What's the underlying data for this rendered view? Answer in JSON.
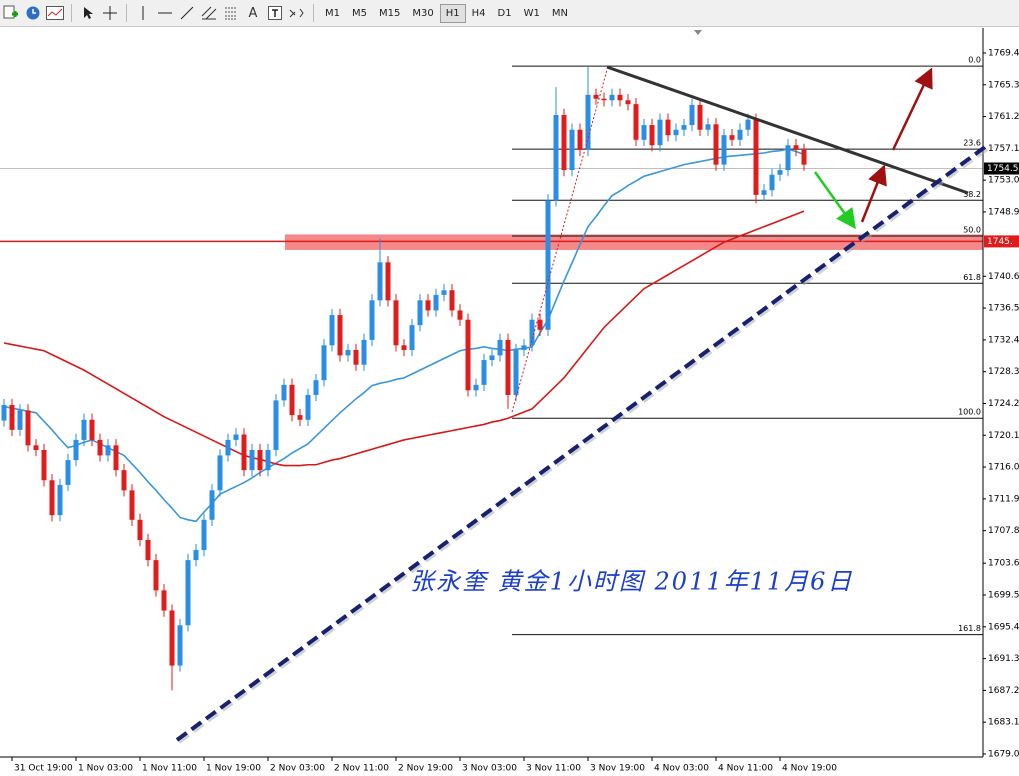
{
  "toolbar": {
    "timeframes": [
      "M1",
      "M5",
      "M15",
      "M30",
      "H1",
      "H4",
      "D1",
      "W1",
      "MN"
    ],
    "active_timeframe": "H1",
    "text_tool": "A"
  },
  "chart_data": {
    "type": "candlestick",
    "annotation": "张永奎  黄金1小时图  2011年11月6日",
    "up_color": "#2a8ee6",
    "down_color": "#e01b1b",
    "categories": [
      null,
      "31 Oct 19:00",
      null,
      null,
      null,
      null,
      null,
      null,
      null,
      "1 Nov 03:00",
      null,
      null,
      null,
      null,
      null,
      null,
      null,
      "1 Nov 11:00",
      null,
      null,
      null,
      null,
      null,
      null,
      null,
      "1 Nov 19:00",
      null,
      null,
      null,
      null,
      null,
      null,
      null,
      "2 Nov 03:00",
      null,
      null,
      null,
      null,
      null,
      null,
      null,
      "2 Nov 11:00",
      null,
      null,
      null,
      null,
      null,
      null,
      null,
      "2 Nov 19:00",
      null,
      null,
      null,
      null,
      null,
      null,
      null,
      "3 Nov 03:00",
      null,
      null,
      null,
      null,
      null,
      null,
      null,
      "3 Nov 11:00",
      null,
      null,
      null,
      null,
      null,
      null,
      null,
      "3 Nov 19:00",
      null,
      null,
      null,
      null,
      null,
      null,
      null,
      "4 Nov 03:00",
      null,
      null,
      null,
      null,
      null,
      null,
      null,
      "4 Nov 11:00",
      null,
      null,
      null,
      null,
      null,
      null,
      null,
      "4 Nov 19:00",
      null,
      null,
      null
    ],
    "open": [
      1722.0,
      1724.0,
      1720.8,
      1723.3,
      1718.8,
      1718.2,
      1714.3,
      1709.8,
      1713.7,
      1716.9,
      1719.5,
      1722.1,
      1719.5,
      1717.5,
      1718.8,
      1715.6,
      1713.0,
      1709.2,
      1706.6,
      1704.0,
      1700.1,
      1697.5,
      1690.4,
      1695.6,
      1704.0,
      1705.3,
      1709.2,
      1713.0,
      1717.5,
      1719.5,
      1720.2,
      1715.6,
      1718.2,
      1715.6,
      1718.2,
      1724.6,
      1726.6,
      1722.7,
      1722.1,
      1725.3,
      1727.2,
      1731.7,
      1735.6,
      1730.4,
      1731.1,
      1729.2,
      1732.4,
      1737.5,
      1742.4,
      1737.5,
      1731.7,
      1731.1,
      1734.3,
      1737.5,
      1736.2,
      1738.2,
      1738.8,
      1736.2,
      1735.0,
      1725.9,
      1726.6,
      1729.8,
      1730.4,
      1732.4,
      1725.3,
      1731.1,
      1731.7,
      1735.0,
      1733.7,
      1750.4,
      1761.4,
      1754.3,
      1759.5,
      1756.9,
      1764.0,
      1763.5,
      1763.3,
      1764.0,
      1763.3,
      1762.8,
      1758.2,
      1760.1,
      1757.5,
      1760.8,
      1758.8,
      1759.5,
      1760.1,
      1762.7,
      1759.5,
      1760.2,
      1755.0,
      1758.8,
      1758.2,
      1759.5,
      1760.8,
      1751.1,
      1751.7,
      1753.7,
      1754.3,
      1757.5,
      1756.9
    ],
    "high": [
      1724.8,
      1724.8,
      1724.1,
      1724.1,
      1719.6,
      1719.0,
      1715.1,
      1714.5,
      1717.7,
      1720.3,
      1722.9,
      1722.9,
      1720.3,
      1719.6,
      1719.6,
      1716.4,
      1713.8,
      1710.0,
      1707.4,
      1704.8,
      1700.9,
      1698.3,
      1696.4,
      1704.8,
      1706.1,
      1710.0,
      1713.8,
      1718.3,
      1720.3,
      1721.0,
      1721.0,
      1719.0,
      1719.0,
      1719.0,
      1725.4,
      1727.4,
      1727.4,
      1723.5,
      1726.1,
      1728.0,
      1732.5,
      1736.4,
      1736.4,
      1731.9,
      1731.9,
      1733.2,
      1738.3,
      1745.5,
      1743.2,
      1738.3,
      1732.5,
      1735.1,
      1738.3,
      1738.3,
      1739.0,
      1739.6,
      1739.6,
      1737.0,
      1735.8,
      1727.4,
      1730.6,
      1731.2,
      1733.2,
      1733.2,
      1731.9,
      1732.5,
      1735.8,
      1735.8,
      1751.2,
      1765.0,
      1762.2,
      1760.3,
      1760.3,
      1767.6,
      1764.8,
      1764.3,
      1764.8,
      1764.8,
      1764.1,
      1763.6,
      1760.9,
      1760.9,
      1761.6,
      1761.6,
      1760.3,
      1760.9,
      1763.5,
      1763.5,
      1761.0,
      1761.0,
      1759.6,
      1759.6,
      1760.3,
      1761.6,
      1761.6,
      1752.5,
      1754.5,
      1755.1,
      1758.3,
      1758.3,
      1757.7
    ],
    "low": [
      1721.2,
      1720.0,
      1720.0,
      1718.0,
      1717.4,
      1713.5,
      1709.0,
      1709.0,
      1712.9,
      1716.1,
      1718.7,
      1718.7,
      1716.7,
      1716.7,
      1714.8,
      1712.2,
      1708.4,
      1705.8,
      1703.2,
      1699.3,
      1696.7,
      1687.2,
      1689.6,
      1694.8,
      1703.2,
      1704.5,
      1708.4,
      1712.2,
      1716.7,
      1718.7,
      1714.8,
      1714.8,
      1714.8,
      1714.8,
      1717.4,
      1723.8,
      1721.9,
      1721.3,
      1721.3,
      1724.5,
      1726.4,
      1730.9,
      1729.6,
      1729.6,
      1728.4,
      1728.4,
      1731.6,
      1736.7,
      1736.7,
      1730.9,
      1730.3,
      1730.3,
      1733.5,
      1735.4,
      1735.4,
      1737.4,
      1735.4,
      1734.2,
      1725.1,
      1725.1,
      1725.8,
      1729.0,
      1729.6,
      1723.5,
      1724.5,
      1730.3,
      1730.9,
      1732.9,
      1732.9,
      1749.6,
      1753.5,
      1753.5,
      1756.1,
      1756.1,
      1762.7,
      1762.5,
      1762.5,
      1762.5,
      1762.0,
      1757.4,
      1757.4,
      1756.7,
      1756.7,
      1758.0,
      1758.0,
      1758.7,
      1759.3,
      1758.7,
      1758.7,
      1754.2,
      1754.2,
      1757.4,
      1757.4,
      1758.7,
      1750.0,
      1750.3,
      1750.9,
      1752.9,
      1753.5,
      1756.1,
      1754.2
    ],
    "close": [
      1724.0,
      1720.8,
      1723.3,
      1718.8,
      1718.2,
      1714.3,
      1709.8,
      1713.7,
      1716.9,
      1719.5,
      1722.1,
      1719.5,
      1717.5,
      1718.8,
      1715.6,
      1713.0,
      1709.2,
      1706.6,
      1704.0,
      1700.1,
      1697.5,
      1690.4,
      1695.6,
      1704.0,
      1705.3,
      1709.2,
      1713.0,
      1717.5,
      1719.5,
      1720.2,
      1715.6,
      1718.2,
      1715.6,
      1718.2,
      1724.6,
      1726.6,
      1722.7,
      1722.1,
      1725.3,
      1727.2,
      1731.7,
      1735.6,
      1730.4,
      1731.1,
      1729.2,
      1732.4,
      1737.5,
      1742.4,
      1737.5,
      1731.7,
      1731.1,
      1734.3,
      1737.5,
      1736.2,
      1738.2,
      1738.8,
      1736.2,
      1735.0,
      1725.9,
      1726.6,
      1729.8,
      1730.4,
      1732.4,
      1725.3,
      1731.1,
      1731.7,
      1735.0,
      1733.7,
      1750.4,
      1761.4,
      1754.3,
      1759.5,
      1756.9,
      1764.0,
      1763.5,
      1763.3,
      1764.0,
      1763.3,
      1762.8,
      1758.2,
      1760.1,
      1757.5,
      1760.8,
      1758.8,
      1759.5,
      1760.1,
      1762.7,
      1759.5,
      1760.2,
      1755.0,
      1758.8,
      1758.2,
      1759.5,
      1760.8,
      1751.1,
      1751.7,
      1753.7,
      1754.3,
      1757.5,
      1756.9,
      1755.0
    ],
    "moving_averages": [
      {
        "color": "#3a97dc",
        "values": [
          1723.8,
          1723.6,
          1723.4,
          1723.2,
          1723.0,
          1721.9,
          1720.8,
          1719.6,
          1718.5,
          1718.8,
          1719.2,
          1719.5,
          1719.0,
          1718.5,
          1718.0,
          1717.5,
          1716.4,
          1715.3,
          1714.1,
          1713.0,
          1711.8,
          1710.7,
          1709.5,
          1709.2,
          1709.0,
          1710.2,
          1711.3,
          1712.5,
          1713.0,
          1713.5,
          1714.0,
          1714.6,
          1715.3,
          1715.9,
          1716.5,
          1717.1,
          1717.8,
          1718.4,
          1719.0,
          1720.0,
          1721.0,
          1722.0,
          1723.0,
          1723.9,
          1724.8,
          1725.6,
          1726.5,
          1726.8,
          1727.0,
          1727.3,
          1727.5,
          1728.0,
          1728.5,
          1729.0,
          1729.5,
          1730.0,
          1730.5,
          1731.0,
          1731.2,
          1731.3,
          1731.5,
          1731.3,
          1731.2,
          1731.0,
          1731.2,
          1731.3,
          1731.5,
          1733.3,
          1735.0,
          1737.5,
          1740.0,
          1742.3,
          1744.7,
          1747.0,
          1748.3,
          1749.7,
          1751.0,
          1751.6,
          1752.3,
          1752.9,
          1753.5,
          1753.8,
          1754.1,
          1754.4,
          1754.7,
          1755.0,
          1755.2,
          1755.4,
          1755.6,
          1755.8,
          1756.0,
          1756.1,
          1756.2,
          1756.3,
          1756.4,
          1756.5,
          1756.7,
          1756.8,
          1757.0,
          1756.7,
          1756.3
        ]
      },
      {
        "color": "#d81818",
        "values": [
          1732.0,
          1731.8,
          1731.6,
          1731.4,
          1731.2,
          1731.0,
          1730.5,
          1730.0,
          1729.5,
          1729.0,
          1728.5,
          1727.9,
          1727.3,
          1726.7,
          1726.1,
          1725.5,
          1724.9,
          1724.3,
          1723.7,
          1723.1,
          1722.5,
          1722.0,
          1721.5,
          1721.0,
          1720.5,
          1720.0,
          1719.5,
          1719.0,
          1718.5,
          1718.0,
          1717.5,
          1717.2,
          1717.0,
          1716.7,
          1716.4,
          1716.2,
          1716.2,
          1716.2,
          1716.3,
          1716.3,
          1716.6,
          1716.9,
          1717.1,
          1717.4,
          1717.7,
          1718.0,
          1718.3,
          1718.6,
          1718.9,
          1719.2,
          1719.5,
          1719.7,
          1719.9,
          1720.1,
          1720.3,
          1720.5,
          1720.7,
          1720.9,
          1721.1,
          1721.3,
          1721.5,
          1721.8,
          1722.0,
          1722.3,
          1722.7,
          1723.1,
          1723.5,
          1724.5,
          1725.5,
          1726.5,
          1727.5,
          1728.8,
          1730.1,
          1731.4,
          1732.7,
          1734.0,
          1735.0,
          1736.0,
          1737.0,
          1738.0,
          1739.0,
          1739.6,
          1740.2,
          1740.8,
          1741.4,
          1742.0,
          1742.6,
          1743.2,
          1743.8,
          1744.4,
          1745.0,
          1745.4,
          1745.8,
          1746.2,
          1746.6,
          1747.0,
          1747.4,
          1747.8,
          1748.2,
          1748.6,
          1749.0
        ]
      }
    ],
    "ylim": [
      1678.74,
      1772.62
    ],
    "yticks": [
      {
        "value": 1769.4,
        "label": "1769.40"
      },
      {
        "value": 1765.3,
        "label": "1765.30"
      },
      {
        "value": 1761.2,
        "label": "1761.20"
      },
      {
        "value": 1757.1,
        "label": "1757.10"
      },
      {
        "value": 1753,
        "label": "1753.00"
      },
      {
        "value": 1748.9,
        "label": "1748.90"
      },
      {
        "value": 1740.6,
        "label": "1740.60"
      },
      {
        "value": 1736.5,
        "label": "1736.50"
      },
      {
        "value": 1732.4,
        "label": "1732.40"
      },
      {
        "value": 1728.3,
        "label": "1728.30"
      },
      {
        "value": 1724.2,
        "label": "1724.20"
      },
      {
        "value": 1720.1,
        "label": "1720.10"
      },
      {
        "value": 1716,
        "label": "1716.00"
      },
      {
        "value": 1711.9,
        "label": "1711.90"
      },
      {
        "value": 1707.8,
        "label": "1707.80"
      },
      {
        "value": 1703.6,
        "label": "1703.60"
      },
      {
        "value": 1699.5,
        "label": "1699.50"
      },
      {
        "value": 1695.4,
        "label": "1695.40"
      },
      {
        "value": 1691.3,
        "label": "1691.30"
      },
      {
        "value": 1687.2,
        "label": "1687.20"
      },
      {
        "value": 1683.1,
        "label": "1683.10"
      },
      {
        "value": 1679,
        "label": "1679.00"
      }
    ],
    "fib_levels": [
      {
        "label": "0.0",
        "price": 1767.7
      },
      {
        "label": "23.6",
        "price": 1757.0
      },
      {
        "label": "38.2",
        "price": 1750.4
      },
      {
        "label": "50.0",
        "price": 1745.8
      },
      {
        "label": "61.8",
        "price": 1739.7
      },
      {
        "label": "100.0",
        "price": 1722.3
      },
      {
        "label": "161.8",
        "price": 1694.4
      }
    ],
    "support_zone": [
      1744.0,
      1746.0
    ],
    "price_labels": [
      {
        "text": "1754.5",
        "price": 1754.5,
        "color": "#000000"
      },
      {
        "text": "1745.",
        "price": 1745.1,
        "color": "#e01b1b"
      }
    ]
  }
}
